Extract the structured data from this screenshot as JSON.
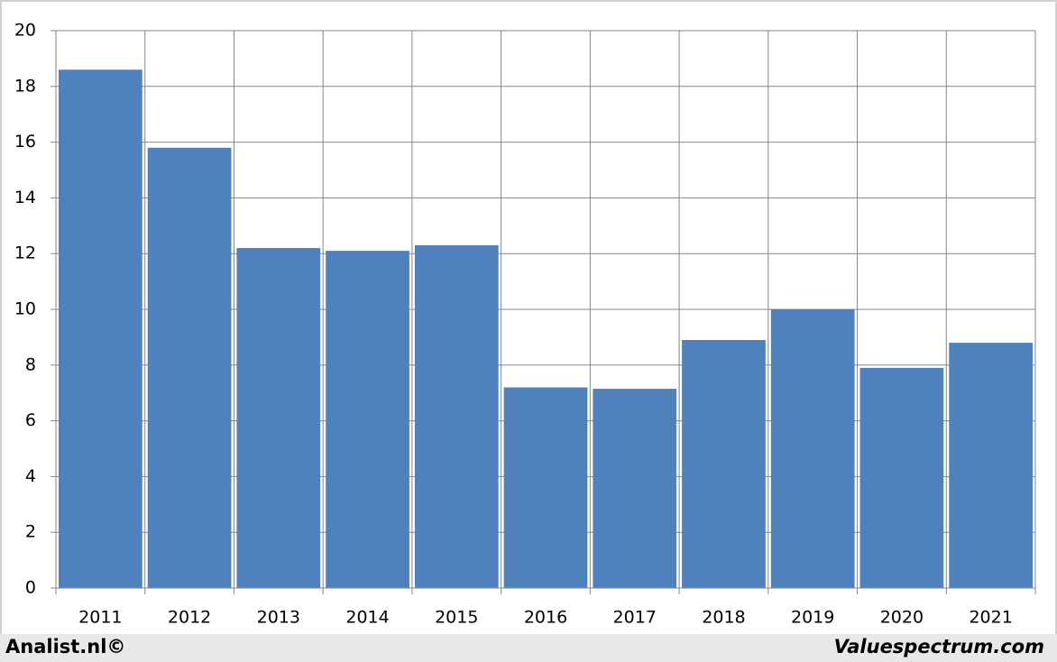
{
  "chart_data": {
    "type": "bar",
    "categories": [
      "2011",
      "2012",
      "2013",
      "2014",
      "2015",
      "2016",
      "2017",
      "2018",
      "2019",
      "2020",
      "2021"
    ],
    "values": [
      18.6,
      15.8,
      12.2,
      12.1,
      12.3,
      7.2,
      7.15,
      8.9,
      10.0,
      7.9,
      8.8
    ],
    "color": "#4f81bd",
    "ylim": [
      0,
      20
    ],
    "yticks": [
      0,
      2,
      4,
      6,
      8,
      10,
      12,
      14,
      16,
      18,
      20
    ],
    "grid": true
  },
  "footer": {
    "left": "Analist.nl©",
    "right": "Valuespectrum.com"
  }
}
